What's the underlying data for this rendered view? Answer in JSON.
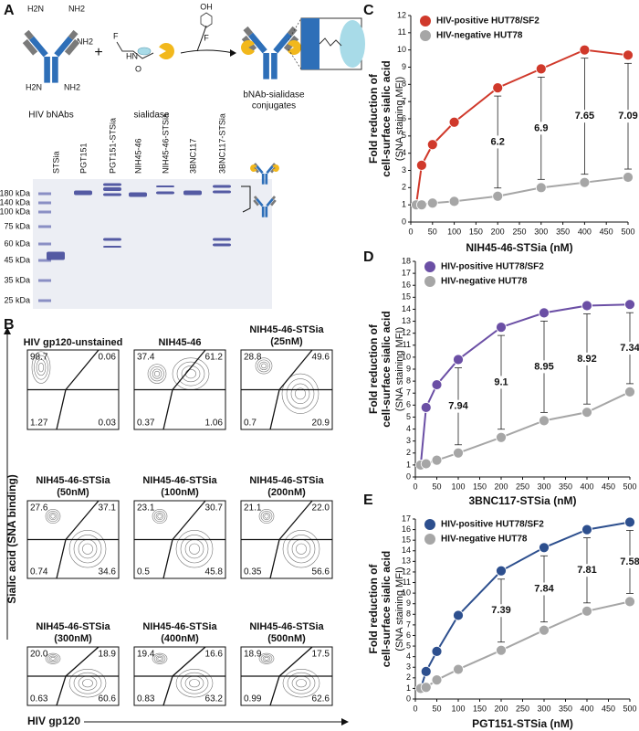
{
  "panel_a": {
    "label": "A",
    "antibody_label": "HIV bNAbs",
    "amine": "NH2",
    "amine_left": "H2N",
    "plus": "+",
    "enzyme_label": "sialidase",
    "conjugate_label": [
      "bNAb-sialidase",
      "conjugates"
    ],
    "reagent_atoms": [
      "F",
      "HN",
      "O"
    ],
    "leaving_group": [
      "OH",
      "F"
    ],
    "gel": {
      "lanes": [
        "STSia",
        "PGT151",
        "PGT151-STSia",
        "NIH45-46",
        "NIH45-46-STSia",
        "3BNC117",
        "3BNC117-STSia"
      ],
      "markers": [
        "180 kDa",
        "140 kDa",
        "100 kDa",
        "75 kDa",
        "60 kDa",
        "45 kDa",
        "35 kDa",
        "25 kDa"
      ]
    }
  },
  "panel_b": {
    "label": "B",
    "ylabel": "Sialic acid (SNA binding)",
    "xlabel": "HIV gp120",
    "plots": [
      {
        "title": "HIV gp120-unstained",
        "quadrants": [
          "98.7",
          "0.06",
          "1.27",
          "0.03"
        ]
      },
      {
        "title": "NIH45-46",
        "quadrants": [
          "37.4",
          "61.2",
          "0.37",
          "1.06"
        ]
      },
      {
        "title": "NIH45-46-STSia",
        "subtitle": "(25nM)",
        "quadrants": [
          "28.8",
          "49.6",
          "0.7",
          "20.9"
        ]
      },
      {
        "title": "NIH45-46-STSia",
        "subtitle": "(50nM)",
        "quadrants": [
          "27.6",
          "37.1",
          "0.74",
          "34.6"
        ]
      },
      {
        "title": "NIH45-46-STSia",
        "subtitle": "(100nM)",
        "quadrants": [
          "23.1",
          "30.7",
          "0.5",
          "45.8"
        ]
      },
      {
        "title": "NIH45-46-STSia",
        "subtitle": "(200nM)",
        "quadrants": [
          "21.1",
          "22.0",
          "0.35",
          "56.6"
        ]
      },
      {
        "title": "NIH45-46-STSia",
        "subtitle": "(300nM)",
        "quadrants": [
          "20.0",
          "18.9",
          "0.63",
          "60.6"
        ]
      },
      {
        "title": "NIH45-46-STSia",
        "subtitle": "(400nM)",
        "quadrants": [
          "19.4",
          "16.6",
          "0.83",
          "63.2"
        ]
      },
      {
        "title": "NIH45-46-STSia",
        "subtitle": "(500nM)",
        "quadrants": [
          "18.9",
          "17.5",
          "0.99",
          "62.6"
        ]
      }
    ]
  },
  "chart_data": [
    {
      "type": "line",
      "panel_label": "C",
      "ylabel": [
        "Fold reduction of",
        "cell-surface sialic acid",
        "(SNA staining MFI)"
      ],
      "xlabel": "NIH45-46-STSia (nM)",
      "x": [
        12.5,
        25,
        50,
        100,
        200,
        300,
        400,
        500
      ],
      "series": [
        {
          "name": "HIV-positive HUT78/SF2",
          "color": "#d0392b",
          "values": [
            1,
            3.3,
            4.5,
            5.8,
            7.8,
            8.9,
            10,
            9.7
          ]
        },
        {
          "name": "HIV-negative HUT78",
          "color": "#a6a6a6",
          "values": [
            1,
            1,
            1.1,
            1.2,
            1.5,
            2,
            2.3,
            2.6
          ]
        }
      ],
      "fold_labels": {
        "x": [
          200,
          300,
          400,
          500
        ],
        "values": [
          6.2,
          6.9,
          7.65,
          7.09
        ]
      },
      "xlim": [
        0,
        500
      ],
      "xticks": [
        0,
        50,
        100,
        150,
        200,
        250,
        300,
        350,
        400,
        450,
        500
      ],
      "ylim": [
        0,
        12
      ],
      "yticks": [
        0,
        1,
        2,
        3,
        4,
        5,
        6,
        7,
        8,
        9,
        10,
        11,
        12
      ],
      "legend": "upper left"
    },
    {
      "type": "line",
      "panel_label": "D",
      "ylabel": [
        "Fold reduction of",
        "cell-surface sialic acid",
        "(SNA staining MFI)"
      ],
      "xlabel": "3BNC117-STSia (nM)",
      "x": [
        12.5,
        25,
        50,
        100,
        200,
        300,
        400,
        500
      ],
      "series": [
        {
          "name": "HIV-positive HUT78/SF2",
          "color": "#6b4fa5",
          "values": [
            1,
            5.8,
            7.7,
            9.8,
            12.5,
            13.7,
            14.3,
            14.4
          ]
        },
        {
          "name": "HIV-negative HUT78",
          "color": "#a6a6a6",
          "values": [
            1,
            1.1,
            1.4,
            2,
            3.3,
            4.7,
            5.4,
            7.1
          ]
        }
      ],
      "fold_labels": {
        "x": [
          100,
          200,
          300,
          400,
          500
        ],
        "values": [
          7.94,
          9.1,
          8.95,
          8.92,
          7.34
        ]
      },
      "xlim": [
        0,
        500
      ],
      "xticks": [
        0,
        50,
        100,
        150,
        200,
        250,
        300,
        350,
        400,
        450,
        500
      ],
      "ylim": [
        0,
        18
      ],
      "yticks": [
        0,
        1,
        2,
        3,
        4,
        5,
        6,
        7,
        8,
        9,
        10,
        11,
        12,
        13,
        14,
        15,
        16,
        17,
        18
      ],
      "legend": "upper left"
    },
    {
      "type": "line",
      "panel_label": "E",
      "ylabel": [
        "Fold reduction of",
        "cell-surface sialic acid",
        "(SNA staining MFI)"
      ],
      "xlabel": "PGT151-STSia (nM)",
      "x": [
        12.5,
        25,
        50,
        100,
        200,
        300,
        400,
        500
      ],
      "series": [
        {
          "name": "HIV-positive HUT78/SF2",
          "color": "#2d4f8e",
          "values": [
            1,
            2.6,
            4.5,
            7.9,
            12.1,
            14.3,
            16,
            16.7
          ]
        },
        {
          "name": "HIV-negative HUT78",
          "color": "#a6a6a6",
          "values": [
            1,
            1.1,
            1.8,
            2.8,
            4.6,
            6.5,
            8.3,
            9.2
          ]
        }
      ],
      "fold_labels": {
        "x": [
          200,
          300,
          400,
          500
        ],
        "values": [
          7.39,
          7.84,
          7.81,
          7.58
        ]
      },
      "xlim": [
        0,
        500
      ],
      "xticks": [
        0,
        50,
        100,
        150,
        200,
        250,
        300,
        350,
        400,
        450,
        500
      ],
      "ylim": [
        0,
        17
      ],
      "yticks": [
        0,
        1,
        2,
        3,
        4,
        5,
        6,
        7,
        8,
        9,
        10,
        11,
        12,
        13,
        14,
        15,
        16,
        17
      ],
      "legend": "upper left"
    }
  ]
}
